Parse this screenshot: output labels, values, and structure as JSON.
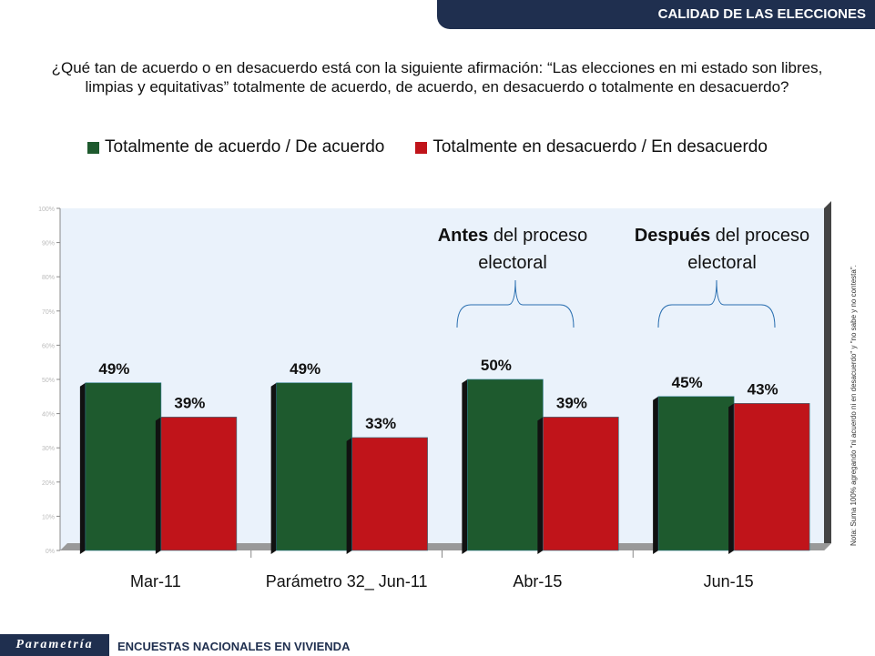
{
  "header": {
    "title": "CALIDAD DE LAS ELECCIONES"
  },
  "question": "¿Qué tan de acuerdo o en desacuerdo está con la siguiente afirmación: “Las elecciones en mi estado son libres, limpias y equitativas” totalmente de acuerdo, de acuerdo, en desacuerdo o totalmente en desacuerdo?",
  "annotations": [
    {
      "bold": "Antes",
      "rest": " del proceso electoral"
    },
    {
      "bold": "Después",
      "rest": " del proceso electoral"
    }
  ],
  "note": "Nota: Suma 100% agregando \"ni acuerdo ni en desacuerdo\" y \"no sabe y no contesta\".",
  "footer": {
    "logo": "Parametría",
    "text": "ENCUESTAS NACIONALES  EN VIVIENDA"
  },
  "chart_data": {
    "type": "bar",
    "categories": [
      "Mar-11",
      "Parámetro 32_ Jun-11",
      "Abr-15",
      "Jun-15"
    ],
    "series": [
      {
        "name": "Totalmente de acuerdo / De acuerdo",
        "values": [
          49,
          49,
          50,
          45
        ],
        "color": "#1e5a2e"
      },
      {
        "name": "Totalmente en desacuerdo / En desacuerdo",
        "values": [
          39,
          33,
          39,
          43
        ],
        "color": "#c0141a"
      }
    ],
    "ylim": [
      0,
      100
    ],
    "yticks": [
      "0%",
      "10%",
      "20%",
      "30%",
      "40%",
      "50%",
      "60%",
      "70%",
      "80%",
      "90%",
      "100%"
    ],
    "data_labels": [
      [
        "49%",
        "49%",
        "50%",
        "45%"
      ],
      [
        "39%",
        "33%",
        "39%",
        "43%"
      ]
    ],
    "legend": "top"
  }
}
